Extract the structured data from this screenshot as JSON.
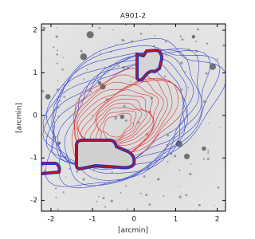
{
  "chart_data": {
    "type": "image",
    "title": "A901-2",
    "xlabel": "[arcmin]",
    "ylabel": "[arcmin]",
    "xlim": [
      -2.23,
      2.2
    ],
    "ylim": [
      -2.25,
      2.15
    ],
    "xticks": [
      -2,
      -1,
      0,
      1,
      2
    ],
    "yticks": [
      -2,
      -1,
      0,
      1,
      2
    ]
  }
}
